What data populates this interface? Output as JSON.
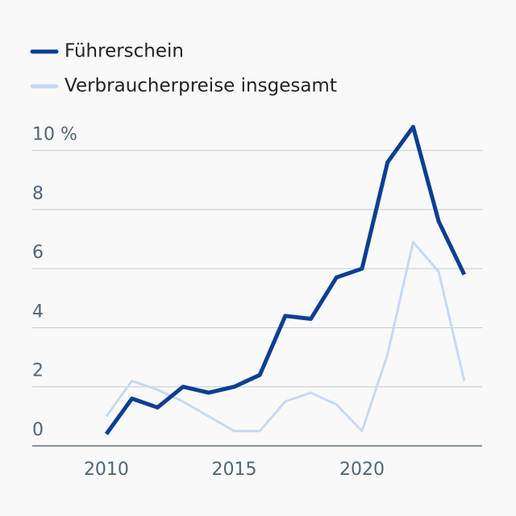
{
  "chart_data": {
    "type": "line",
    "x": [
      2010,
      2011,
      2012,
      2013,
      2014,
      2015,
      2016,
      2017,
      2018,
      2019,
      2020,
      2021,
      2022,
      2023,
      2024
    ],
    "series": [
      {
        "name": "Führerschein",
        "color": "#0b3f94",
        "values": [
          0.4,
          1.6,
          1.3,
          2.0,
          1.8,
          2.0,
          2.4,
          4.4,
          4.3,
          5.7,
          6.0,
          9.6,
          10.8,
          7.6,
          5.8
        ]
      },
      {
        "name": "Verbraucherpreise insgesamt",
        "color": "#c6d9f3",
        "values": [
          1.0,
          2.2,
          1.9,
          1.5,
          1.0,
          0.5,
          0.5,
          1.5,
          1.8,
          1.4,
          0.5,
          3.1,
          6.9,
          5.9,
          2.2
        ]
      }
    ],
    "xlim": [
      2007.1,
      2024.7
    ],
    "xticks": [
      2010,
      2015,
      2020
    ],
    "ylim": [
      0,
      11
    ],
    "yticks": [
      0,
      2,
      4,
      6,
      8,
      {
        "value": 10,
        "label": "10 %"
      }
    ],
    "grid": true,
    "legend": "top-left"
  }
}
